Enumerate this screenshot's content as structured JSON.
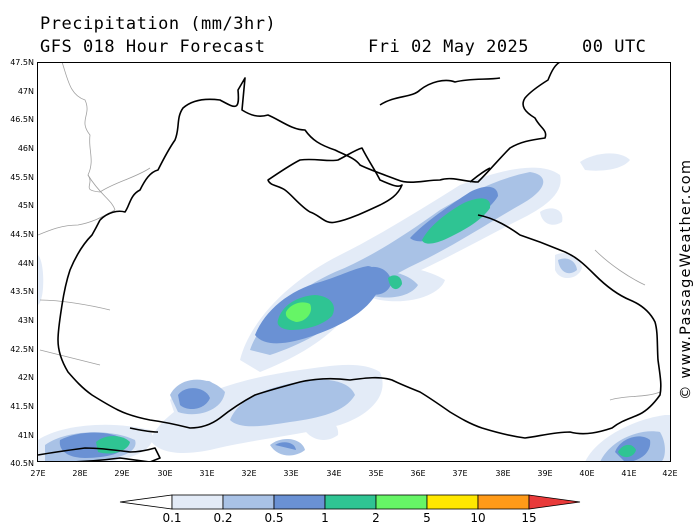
{
  "header": {
    "title": "Precipitation (mm/3hr)",
    "subtitle": "GFS 018 Hour Forecast",
    "date": "Fri 02 May 2025",
    "time": "00 UTC"
  },
  "watermark": "© www.PassageWeather.com",
  "axes": {
    "lat_labels": [
      "47.5N",
      "47N",
      "46.5N",
      "46N",
      "45.5N",
      "45N",
      "44.5N",
      "44N",
      "43.5N",
      "43N",
      "42.5N",
      "42N",
      "41.5N",
      "41N",
      "40.5N"
    ],
    "lon_labels": [
      "27E",
      "28E",
      "29E",
      "30E",
      "31E",
      "32E",
      "33E",
      "34E",
      "35E",
      "36E",
      "37E",
      "38E",
      "39E",
      "40E",
      "41E",
      "42E"
    ],
    "lat_range": [
      40.5,
      47.5
    ],
    "lon_range": [
      27,
      42
    ]
  },
  "legend": {
    "labels": [
      "0.1",
      "0.2",
      "0.5",
      "1",
      "2",
      "5",
      "10",
      "15"
    ],
    "colors": [
      "#ffffff",
      "#e3ebf7",
      "#a9c2e6",
      "#6a91d4",
      "#2fc493",
      "#66f566",
      "#ffe800",
      "#ff9a18",
      "#e83a3a"
    ]
  },
  "colors": {
    "precip_light": "#e3ebf7",
    "precip_mid": "#a9c2e6",
    "precip_blue": "#6a91d4",
    "precip_teal": "#2fc493",
    "precip_green": "#66f566",
    "coastline": "#000000",
    "borders": "#a0a0a0"
  }
}
